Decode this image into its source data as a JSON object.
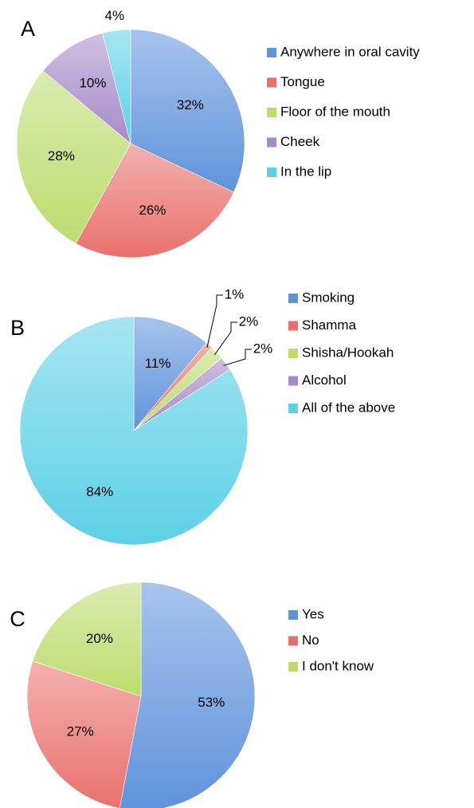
{
  "chart_data": [
    {
      "type": "pie",
      "title": "A",
      "categories": [
        "Anywhere in oral cavity",
        "Tongue",
        "Floor of the mouth",
        "Cheek",
        "In the lip"
      ],
      "values": [
        32,
        26,
        28,
        10,
        4
      ],
      "value_labels": [
        "32%",
        "26%",
        "28%",
        "10%",
        "4%"
      ],
      "colors": [
        "#5f93dc",
        "#e9716d",
        "#bcdc6e",
        "#a68bc9",
        "#5dd0e6"
      ],
      "legend": "right"
    },
    {
      "type": "pie",
      "title": "B",
      "categories": [
        "Smoking",
        "Shamma",
        "Shisha/Hookah",
        "Alcohol",
        "All of the above"
      ],
      "values": [
        11,
        1,
        2,
        2,
        84
      ],
      "value_labels": [
        "11%",
        "1%",
        "2%",
        "2%",
        "84%"
      ],
      "colors": [
        "#5f93dc",
        "#e9716d",
        "#bcdc6e",
        "#a68bc9",
        "#5dd0e6"
      ],
      "legend": "right"
    },
    {
      "type": "pie",
      "title": "C",
      "categories": [
        "Yes",
        "No",
        "I don't know"
      ],
      "values": [
        53,
        27,
        20
      ],
      "value_labels": [
        "53%",
        "27%",
        "20%"
      ],
      "colors": [
        "#5f93dc",
        "#e9716d",
        "#bcdc6e"
      ],
      "legend": "right"
    }
  ]
}
